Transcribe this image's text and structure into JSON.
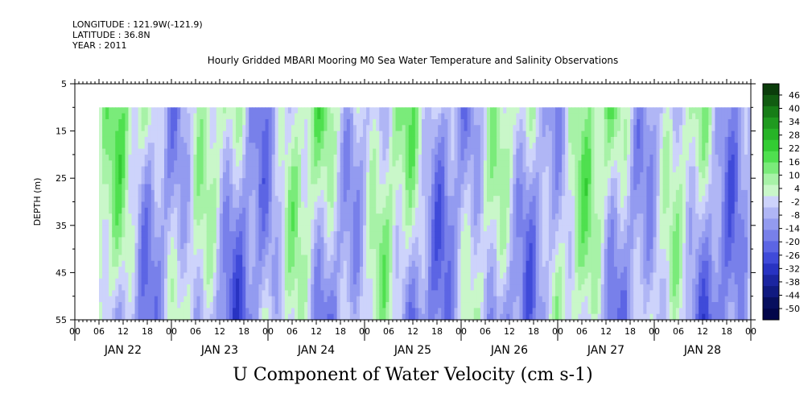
{
  "header": {
    "longitude": "LONGITUDE : 121.9W(-121.9)",
    "latitude": "LATITUDE : 36.8N",
    "year": "YEAR : 2011"
  },
  "chart_data": {
    "type": "heatmap",
    "title": "Hourly Gridded MBARI Mooring M0 Sea Water Temperature and Salinity Observations",
    "bottom_title": "U Component of Water Velocity (cm s-1)",
    "ylabel": "DEPTH (m)",
    "y_ticks": [
      "5",
      "15",
      "25",
      "35",
      "45",
      "55"
    ],
    "ylim": [
      5,
      55
    ],
    "y_inverted": true,
    "x_hour_ticks": [
      "00",
      "06",
      "12",
      "18",
      "00",
      "06",
      "12",
      "18",
      "00",
      "06",
      "12",
      "18",
      "00",
      "06",
      "12",
      "18",
      "00",
      "06",
      "12",
      "18",
      "00",
      "06",
      "12",
      "18",
      "00",
      "06",
      "12",
      "18",
      "00"
    ],
    "x_day_labels": [
      "JAN 22",
      "JAN 23",
      "JAN 24",
      "JAN 25",
      "JAN 26",
      "JAN 27",
      "JAN 28"
    ],
    "data_depth_range": [
      10,
      55
    ],
    "data_time_start_hour": 6,
    "colorbar": {
      "labels": [
        "46",
        "40",
        "34",
        "28",
        "22",
        "16",
        "10",
        "4",
        "-2",
        "-8",
        "-14",
        "-20",
        "-26",
        "-32",
        "-38",
        "-44",
        "-50"
      ],
      "colors": [
        "#0b3d0b",
        "#115c11",
        "#177d17",
        "#1f9a1f",
        "#27b427",
        "#33cc33",
        "#4fe04f",
        "#7aeb7a",
        "#a7f2a7",
        "#c9f7c9",
        "#cdd3fb",
        "#b0b6f5",
        "#939bf0",
        "#7880ea",
        "#5c65e4",
        "#3f4ad9",
        "#2833c2",
        "#1b25a0",
        "#101a80",
        "#070f5e",
        "#02064a"
      ]
    }
  }
}
